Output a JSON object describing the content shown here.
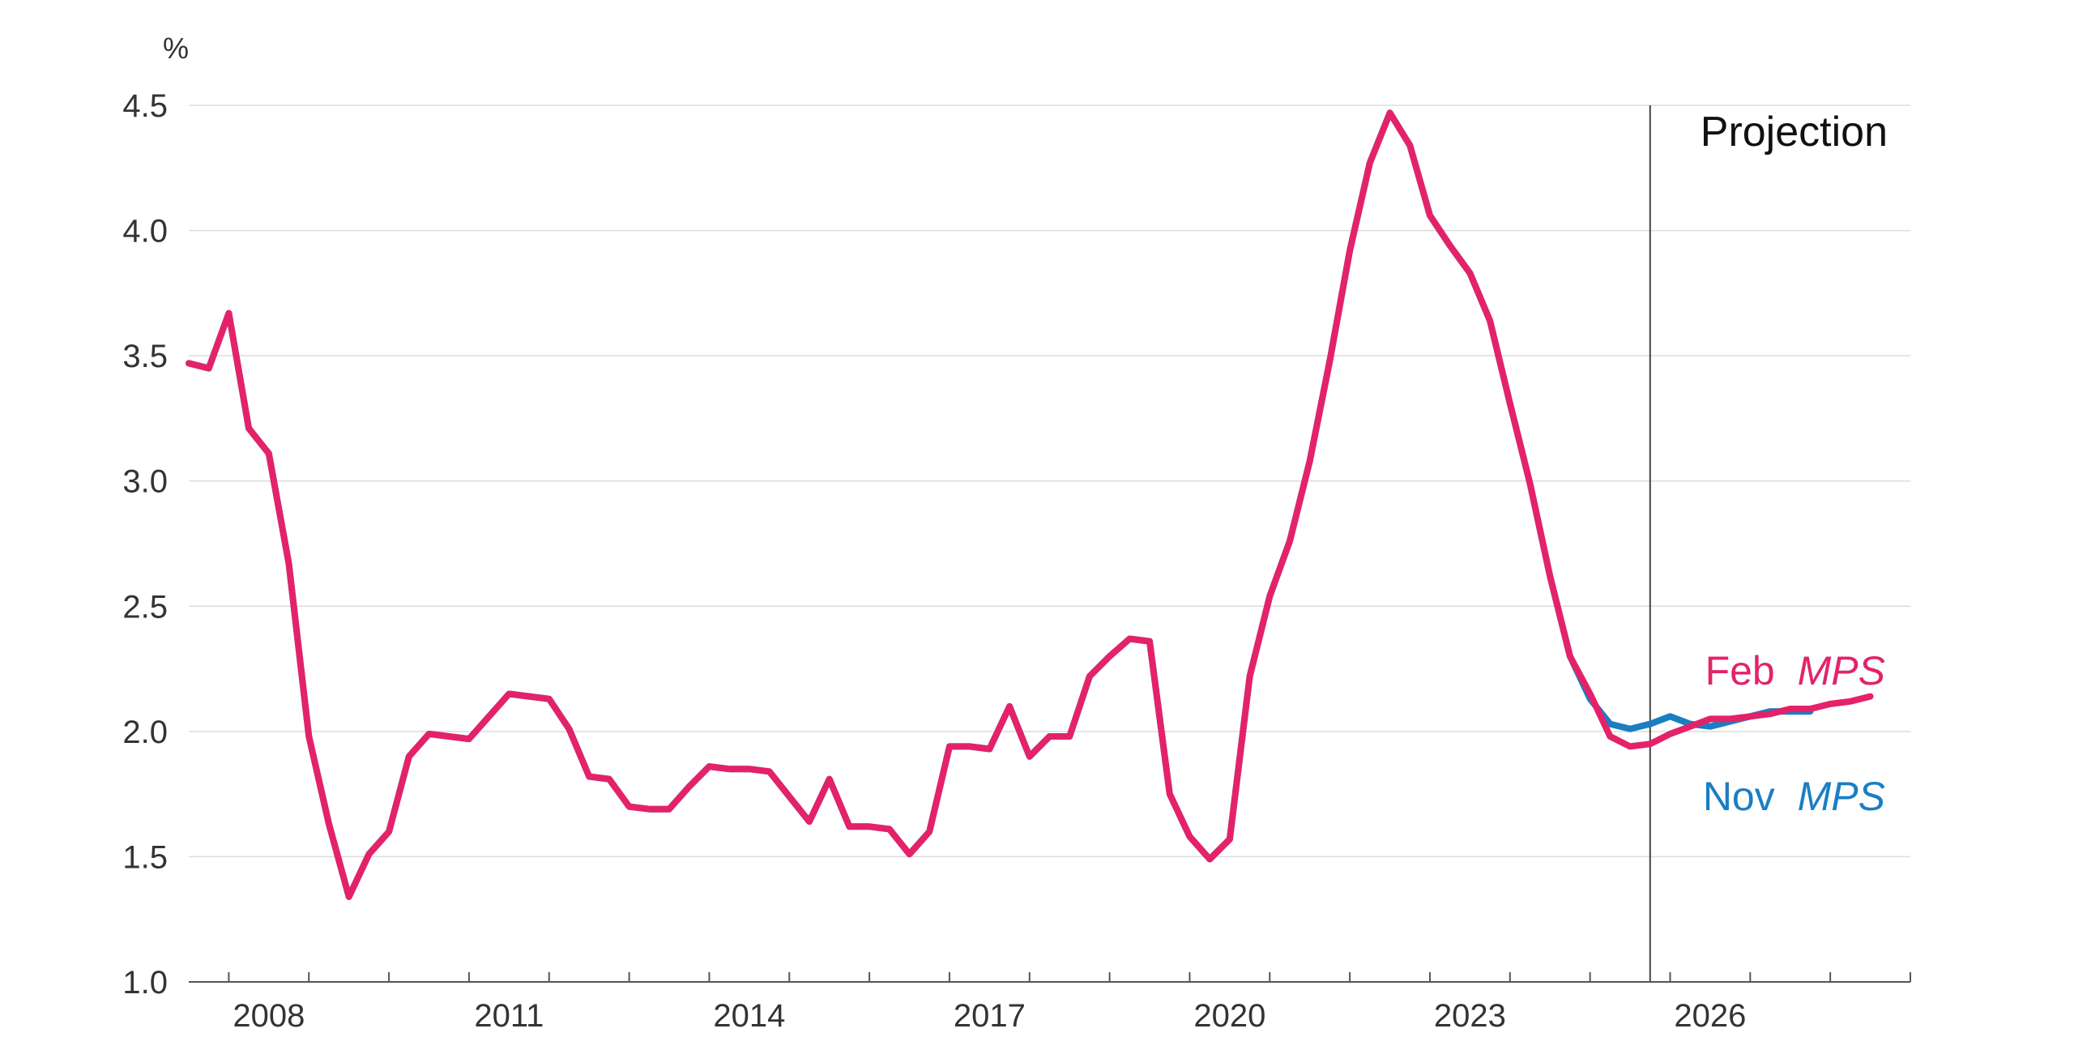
{
  "chart_data": {
    "type": "line",
    "title": "",
    "xlabel": "",
    "ylabel": "%",
    "xlim": [
      2007.5,
      2029.0
    ],
    "ylim": [
      1.0,
      4.5
    ],
    "grid": true,
    "legend": "inline-right",
    "yticks": [
      1.0,
      1.5,
      2.0,
      2.5,
      3.0,
      3.5,
      4.0,
      4.5
    ],
    "ytick_labels": [
      "1.0",
      "1.5",
      "2.0",
      "2.5",
      "3.0",
      "3.5",
      "4.0",
      "4.5"
    ],
    "xtick_labels": [
      {
        "x": 2008,
        "label": "2008"
      },
      {
        "x": 2011,
        "label": "2011"
      },
      {
        "x": 2014,
        "label": "2014"
      },
      {
        "x": 2017,
        "label": "2017"
      },
      {
        "x": 2020,
        "label": "2020"
      },
      {
        "x": 2023,
        "label": "2023"
      },
      {
        "x": 2026,
        "label": "2026"
      }
    ],
    "x_start": 2007.5,
    "x_step": 0.25,
    "projection": {
      "x": 2025.75,
      "label": "Projection"
    },
    "series": [
      {
        "name_prefix": "Nov",
        "name_italic": "MPS",
        "color": "#1a7ec2",
        "values": [
          3.47,
          3.45,
          3.67,
          3.21,
          3.11,
          2.67,
          1.98,
          1.63,
          1.34,
          1.51,
          1.6,
          1.9,
          1.99,
          1.98,
          1.97,
          2.06,
          2.15,
          2.14,
          2.13,
          2.01,
          1.82,
          1.81,
          1.7,
          1.69,
          1.69,
          1.78,
          1.86,
          1.85,
          1.85,
          1.84,
          1.74,
          1.64,
          1.81,
          1.62,
          1.62,
          1.61,
          1.51,
          1.6,
          1.94,
          1.94,
          1.93,
          2.1,
          1.9,
          1.98,
          1.98,
          2.22,
          2.3,
          2.37,
          2.36,
          1.75,
          1.58,
          1.49,
          1.57,
          2.22,
          2.54,
          2.76,
          3.08,
          3.48,
          3.92,
          4.27,
          4.47,
          4.34,
          4.06,
          3.94,
          3.83,
          3.64,
          3.31,
          2.99,
          2.62,
          2.3,
          2.13,
          2.03,
          2.01,
          2.03,
          2.06,
          2.03,
          2.02,
          2.04,
          2.06,
          2.08,
          2.08,
          2.08
        ]
      },
      {
        "name_prefix": "Feb",
        "name_italic": "MPS",
        "color": "#e4226a",
        "values": [
          3.47,
          3.45,
          3.67,
          3.21,
          3.11,
          2.67,
          1.98,
          1.63,
          1.34,
          1.51,
          1.6,
          1.9,
          1.99,
          1.98,
          1.97,
          2.06,
          2.15,
          2.14,
          2.13,
          2.01,
          1.82,
          1.81,
          1.7,
          1.69,
          1.69,
          1.78,
          1.86,
          1.85,
          1.85,
          1.84,
          1.74,
          1.64,
          1.81,
          1.62,
          1.62,
          1.61,
          1.51,
          1.6,
          1.94,
          1.94,
          1.93,
          2.1,
          1.9,
          1.98,
          1.98,
          2.22,
          2.3,
          2.37,
          2.36,
          1.75,
          1.58,
          1.49,
          1.57,
          2.22,
          2.54,
          2.76,
          3.08,
          3.48,
          3.92,
          4.27,
          4.47,
          4.34,
          4.06,
          3.94,
          3.83,
          3.64,
          3.31,
          2.99,
          2.62,
          2.3,
          2.15,
          1.98,
          1.94,
          1.95,
          1.99,
          2.02,
          2.05,
          2.05,
          2.06,
          2.07,
          2.09,
          2.09,
          2.11,
          2.12,
          2.14
        ]
      }
    ]
  }
}
